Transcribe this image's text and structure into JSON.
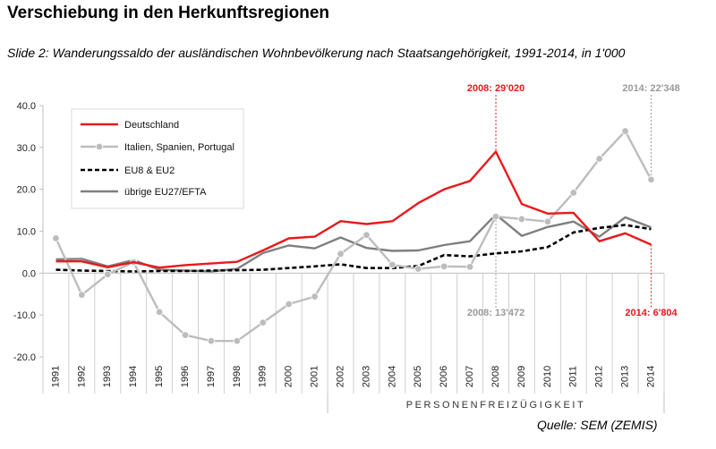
{
  "page": {
    "title": "Verschiebung in den Herkunftsregionen",
    "subtitle": "Slide 2: Wanderungssaldo der ausländischen Wohnbevölkerung nach Staatsangehörigkeit, 1991-2014, in 1'000",
    "source": "Quelle: SEM (ZEMIS)"
  },
  "chart_data": {
    "type": "line",
    "title": "",
    "xlabel": "",
    "ylabel": "",
    "x": [
      1991,
      1992,
      1993,
      1994,
      1995,
      1996,
      1997,
      1998,
      1999,
      2000,
      2001,
      2002,
      2003,
      2004,
      2005,
      2006,
      2007,
      2008,
      2009,
      2010,
      2011,
      2012,
      2013,
      2014
    ],
    "x_tick_labels": [
      "1991",
      "1992",
      "1993",
      "1994",
      "1995",
      "1996",
      "1997",
      "1998",
      "1999",
      "2000",
      "2001",
      "2002",
      "2003",
      "2004",
      "2005",
      "2006",
      "2007",
      "2008",
      "2009",
      "2010",
      "2011",
      "2012",
      "2013",
      "2014"
    ],
    "ylim": [
      -20,
      40
    ],
    "y_ticks": [
      40,
      30,
      20,
      10,
      0,
      -10,
      -20
    ],
    "y_tick_labels": [
      "40.0",
      "30.0",
      "20.0",
      "10.0",
      "0.0",
      "-10.0",
      "-20.0"
    ],
    "grid": false,
    "legend_position": "top-left",
    "series": [
      {
        "name": "Deutschland",
        "color": "#e8191b",
        "style": "solid",
        "markers": false,
        "values": [
          2.8,
          2.8,
          1.4,
          2.6,
          1.3,
          1.9,
          2.3,
          2.7,
          5.4,
          8.3,
          8.7,
          12.4,
          11.7,
          12.4,
          16.7,
          20.0,
          22.0,
          29.0,
          16.5,
          14.2,
          14.4,
          7.6,
          9.5,
          6.8
        ]
      },
      {
        "name": "Italien, Spanien, Portugal",
        "color": "#bdbdbd",
        "style": "solid",
        "markers": true,
        "values": [
          8.3,
          -5.2,
          -0.3,
          2.6,
          -9.3,
          -14.8,
          -16.2,
          -16.2,
          -11.8,
          -7.4,
          -5.6,
          4.6,
          9.1,
          2.0,
          1.0,
          1.6,
          1.5,
          13.5,
          12.9,
          12.3,
          19.2,
          27.3,
          33.9,
          22.3
        ]
      },
      {
        "name": "EU8 & EU2",
        "color": "#000000",
        "style": "dashed",
        "markers": false,
        "values": [
          0.8,
          0.6,
          0.5,
          0.4,
          0.5,
          0.5,
          0.6,
          0.7,
          0.8,
          1.2,
          1.6,
          2.1,
          1.2,
          1.2,
          1.7,
          4.3,
          4.0,
          4.7,
          5.2,
          6.2,
          9.7,
          10.8,
          11.5,
          10.5
        ]
      },
      {
        "name": "übrige EU27/EFTA",
        "color": "#7f7f7f",
        "style": "solid",
        "markers": false,
        "values": [
          3.3,
          3.4,
          1.6,
          3.1,
          0.8,
          0.6,
          0.4,
          1.0,
          4.8,
          6.6,
          5.9,
          8.5,
          6.0,
          5.3,
          5.4,
          6.7,
          7.6,
          14.0,
          8.9,
          11.0,
          12.3,
          8.7,
          13.3,
          10.9
        ]
      }
    ],
    "annotations": [
      {
        "text": "2008: 29'020",
        "year": 2008,
        "value": 29.0,
        "color": "#e8191b",
        "placement": "above"
      },
      {
        "text": "2008: 13'472",
        "year": 2008,
        "value": 13.5,
        "color": "#9a9a9a",
        "placement": "below"
      },
      {
        "text": "2014: 22'348",
        "year": 2014,
        "value": 22.3,
        "color": "#9a9a9a",
        "placement": "above"
      },
      {
        "text": "2014: 6'804",
        "year": 2014,
        "value": 6.8,
        "color": "#e8191b",
        "placement": "below"
      }
    ],
    "period_label": "PERSONENFREIZÜGIGKEIT",
    "period_start_year": 2002,
    "period_end_year": 2014
  }
}
